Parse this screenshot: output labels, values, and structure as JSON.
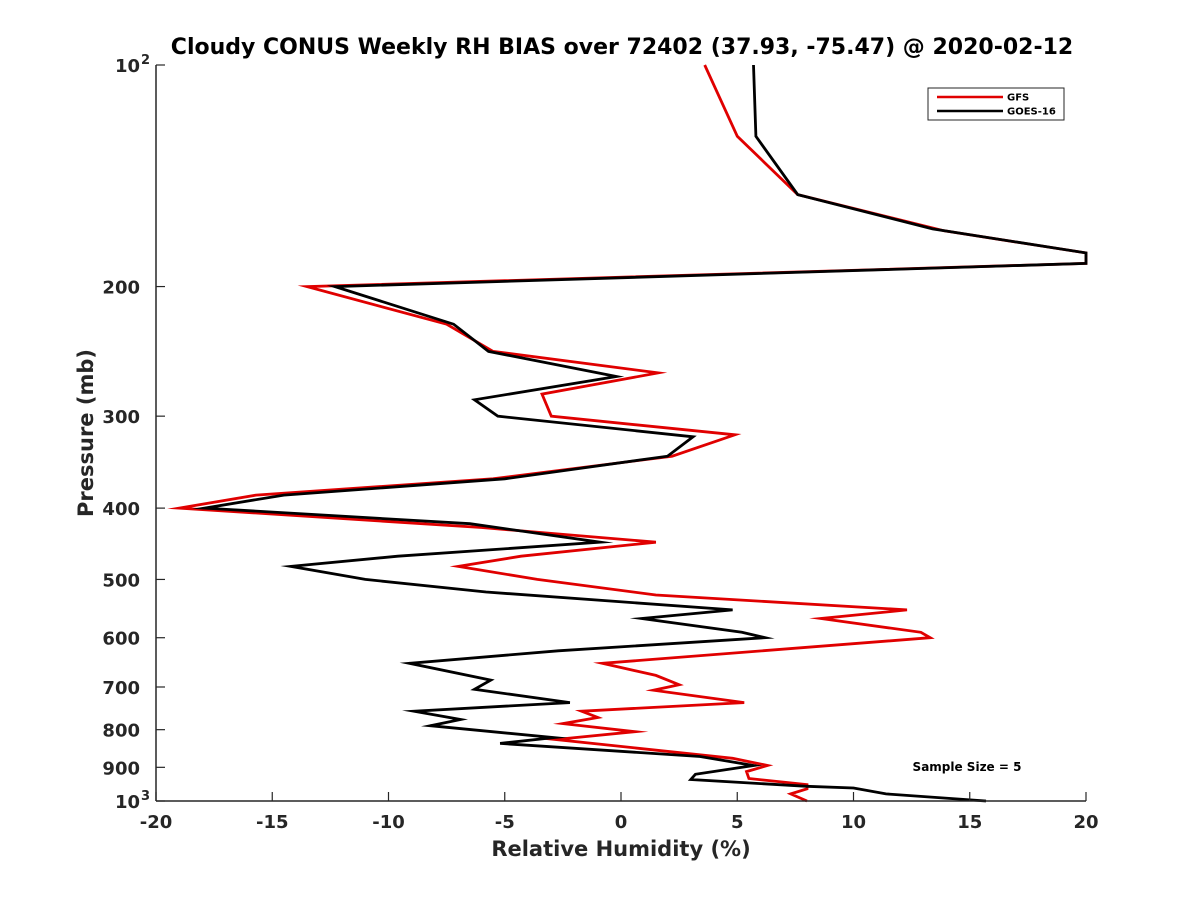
{
  "chart_data": {
    "type": "line",
    "title": "Cloudy CONUS Weekly RH BIAS over 72402 (37.93, -75.47) @ 2020-02-12",
    "xlabel": "Relative Humidity (%)",
    "ylabel": "Pressure (mb)",
    "xlim": [
      -20,
      20
    ],
    "ylim": [
      100,
      1000
    ],
    "y_scale": "log",
    "y_reversed": true,
    "grid": false,
    "legend_position": "top-right",
    "x_ticks": [
      -20,
      -15,
      -10,
      -5,
      0,
      5,
      10,
      15,
      20
    ],
    "x_tick_labels": [
      "-20",
      "-15",
      "-10",
      "-5",
      "0",
      "5",
      "10",
      "15",
      "20"
    ],
    "y_ticks": [
      100,
      200,
      300,
      400,
      500,
      600,
      700,
      800,
      900,
      1000
    ],
    "y_tick_labels": [
      "10²",
      "200",
      "300",
      "400",
      "500",
      "600",
      "700",
      "800",
      "900",
      "10³"
    ],
    "annotation": "Sample Size = 5",
    "series": [
      {
        "name": "GFS",
        "color": "#e00000",
        "points": [
          [
            3.6,
            100
          ],
          [
            5.0,
            125
          ],
          [
            7.6,
            150
          ],
          [
            13.9,
            168
          ],
          [
            20.0,
            180
          ],
          [
            20.0,
            186
          ],
          [
            -13.5,
            200
          ],
          [
            -7.5,
            225
          ],
          [
            -5.5,
            245
          ],
          [
            1.6,
            262
          ],
          [
            -3.4,
            280
          ],
          [
            -3.0,
            300
          ],
          [
            4.9,
            318
          ],
          [
            2.2,
            340
          ],
          [
            -5.5,
            365
          ],
          [
            -15.7,
            384
          ],
          [
            -19.0,
            400
          ],
          [
            -6.0,
            425
          ],
          [
            1.5,
            445
          ],
          [
            -4.3,
            465
          ],
          [
            -7.0,
            480
          ],
          [
            -3.6,
            500
          ],
          [
            1.5,
            525
          ],
          [
            12.3,
            550
          ],
          [
            8.6,
            565
          ],
          [
            12.9,
            590
          ],
          [
            13.3,
            600
          ],
          [
            -0.8,
            650
          ],
          [
            1.5,
            675
          ],
          [
            2.5,
            695
          ],
          [
            1.4,
            707
          ],
          [
            5.3,
            735
          ],
          [
            -1.7,
            755
          ],
          [
            -1.0,
            770
          ],
          [
            -2.5,
            785
          ],
          [
            0.6,
            805
          ],
          [
            -2.8,
            825
          ],
          [
            4.8,
            875
          ],
          [
            6.3,
            895
          ],
          [
            5.4,
            912
          ],
          [
            5.5,
            932
          ],
          [
            8.0,
            950
          ],
          [
            8.0,
            963
          ],
          [
            7.3,
            978
          ],
          [
            8.0,
            1000
          ]
        ]
      },
      {
        "name": "GOES-16",
        "color": "#000000",
        "points": [
          [
            5.7,
            100
          ],
          [
            5.8,
            125
          ],
          [
            7.6,
            150
          ],
          [
            13.4,
            167
          ],
          [
            20.0,
            180
          ],
          [
            20.0,
            186
          ],
          [
            -12.3,
            200
          ],
          [
            -7.2,
            225
          ],
          [
            -5.7,
            245
          ],
          [
            -0.2,
            265
          ],
          [
            -6.3,
            285
          ],
          [
            -5.3,
            300
          ],
          [
            3.1,
            320
          ],
          [
            2.0,
            340
          ],
          [
            -5.0,
            365
          ],
          [
            -14.5,
            384
          ],
          [
            -17.9,
            400
          ],
          [
            -6.5,
            420
          ],
          [
            -0.9,
            445
          ],
          [
            -9.6,
            465
          ],
          [
            -14.2,
            480
          ],
          [
            -11.0,
            500
          ],
          [
            -5.8,
            520
          ],
          [
            4.8,
            550
          ],
          [
            0.9,
            565
          ],
          [
            5.2,
            590
          ],
          [
            6.2,
            600
          ],
          [
            -2.7,
            625
          ],
          [
            -9.1,
            650
          ],
          [
            -5.6,
            685
          ],
          [
            -6.3,
            705
          ],
          [
            -2.2,
            735
          ],
          [
            -8.9,
            755
          ],
          [
            -6.9,
            775
          ],
          [
            -8.2,
            790
          ],
          [
            -2.9,
            820
          ],
          [
            -5.2,
            835
          ],
          [
            3.4,
            870
          ],
          [
            5.7,
            895
          ],
          [
            3.2,
            920
          ],
          [
            3.0,
            935
          ],
          [
            8.0,
            955
          ],
          [
            10.0,
            960
          ],
          [
            11.4,
            978
          ],
          [
            15.7,
            1000
          ]
        ]
      }
    ]
  }
}
